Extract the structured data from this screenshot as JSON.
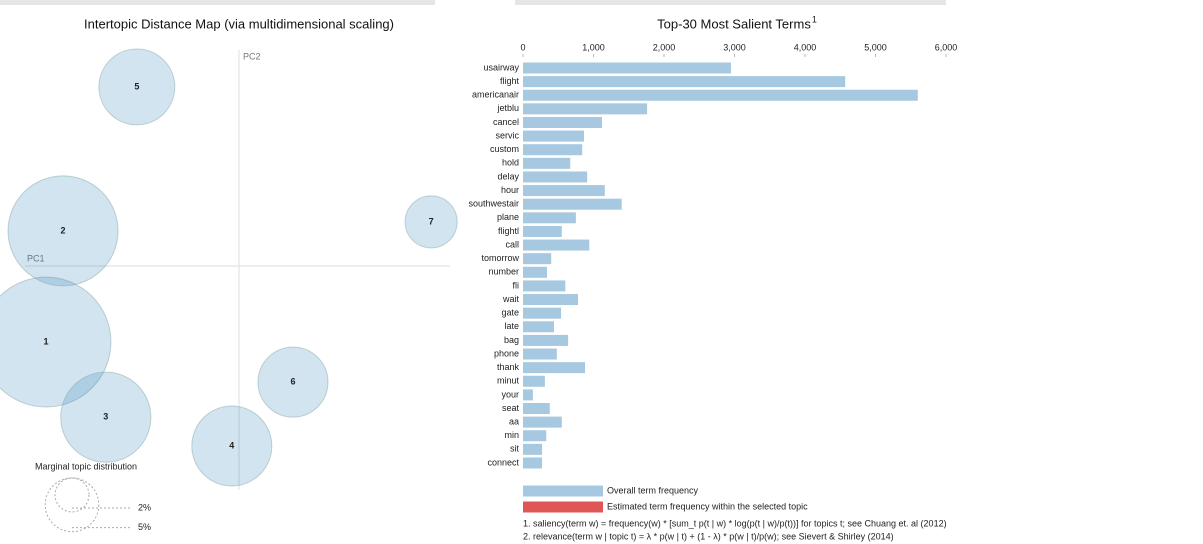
{
  "chart_data": [
    {
      "type": "bubble",
      "title": "Intertopic Distance Map (via multidimensional scaling)",
      "x_label": "PC1",
      "y_label": "PC2",
      "categories": [
        "1",
        "2",
        "3",
        "4",
        "5",
        "6",
        "7"
      ],
      "x": [
        -0.429,
        -0.391,
        -0.296,
        -0.016,
        -0.227,
        0.12,
        0.427
      ],
      "values": [
        -0.169,
        0.078,
        -0.336,
        -0.4,
        0.398,
        -0.258,
        0.098
      ],
      "sizes": [
        29.3,
        21.0,
        14.1,
        11.1,
        10.0,
        8.5,
        4.7
      ],
      "xlim": [
        -0.5,
        0.5
      ],
      "ylim": [
        -0.5,
        0.5
      ],
      "color": "#1f77b4",
      "size_legend": {
        "title": "Marginal topic distribution",
        "values": [
          {
            "value": 2,
            "label": "2%"
          },
          {
            "value": 5,
            "label": "5%"
          }
        ]
      }
    },
    {
      "type": "bar",
      "orientation": "horizontal",
      "title": "Top-30 Most Salient Terms",
      "title_note": "1",
      "categories": [
        "usairway",
        "flight",
        "americanair",
        "jetblu",
        "cancel",
        "servic",
        "custom",
        "hold",
        "delay",
        "hour",
        "southwestair",
        "plane",
        "flightl",
        "call",
        "tomorrow",
        "number",
        "fli",
        "wait",
        "gate",
        "late",
        "bag",
        "phone",
        "thank",
        "minut",
        "your",
        "seat",
        "aa",
        "min",
        "sit",
        "connect"
      ],
      "values": [
        2950,
        4570,
        5600,
        1760,
        1120,
        865,
        840,
        670,
        910,
        1160,
        1400,
        750,
        550,
        940,
        400,
        340,
        600,
        780,
        540,
        440,
        640,
        480,
        880,
        310,
        140,
        380,
        550,
        330,
        270,
        270
      ],
      "color": "#a6c8e0",
      "xlim": [
        0,
        6000
      ],
      "xticks": [
        0,
        {
          "value": 1000,
          "label": "1,000"
        },
        {
          "value": 2000,
          "label": "2,000"
        },
        {
          "value": 3000,
          "label": "3,000"
        },
        {
          "value": 4000,
          "label": "4,000"
        },
        {
          "value": 5000,
          "label": "5,000"
        },
        {
          "value": 6000,
          "label": "6,000"
        }
      ],
      "legend": [
        {
          "label": "Overall term frequency",
          "color": "#a6c8e0"
        },
        {
          "label": "Estimated term frequency within the selected topic",
          "color": "#e05555"
        }
      ],
      "footnotes": [
        "1. saliency(term w) = frequency(w) * [sum_t p(t | w) * log(p(t | w)/p(t))] for topics t; see Chuang et. al (2012)",
        "2. relevance(term w | topic t) = λ * p(w | t) + (1 - λ) * p(w | t)/p(w); see Sievert & Shirley (2014)"
      ]
    }
  ]
}
